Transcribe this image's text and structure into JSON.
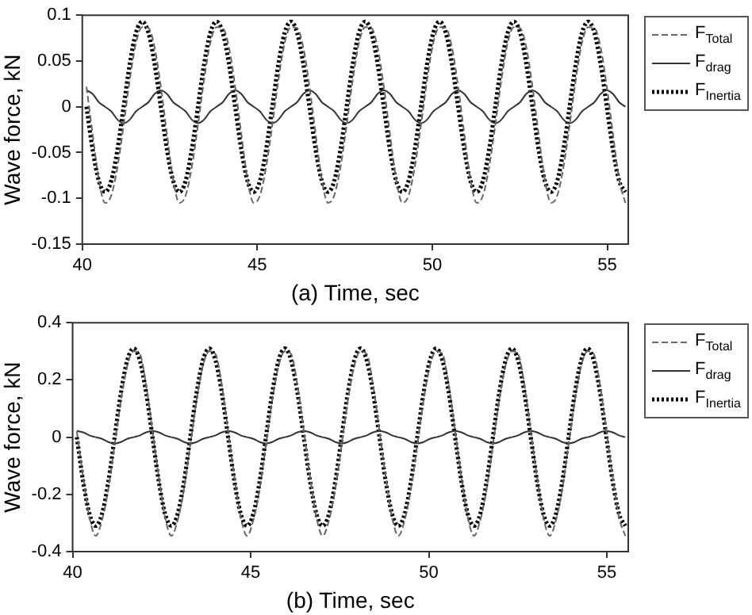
{
  "chart_data": [
    {
      "type": "line",
      "xlabel": "(a) Time, sec",
      "ylabel": "Wave force, kN",
      "xlim": [
        40,
        55.6
      ],
      "ylim": [
        -0.15,
        0.1
      ],
      "xticks": [
        40,
        45,
        50,
        55
      ],
      "yticks": [
        -0.15,
        -0.1,
        -0.05,
        0,
        0.05,
        0.1
      ],
      "grid": false,
      "legend": "top right",
      "x": [
        40.119,
        40.296,
        40.473,
        40.65,
        40.827,
        41.004,
        41.181,
        41.358,
        41.535,
        41.712,
        41.889,
        42.066,
        42.243,
        42.42,
        42.597,
        42.774,
        42.951,
        43.128,
        43.305,
        43.482,
        43.659,
        43.836,
        44.013,
        44.19,
        44.367,
        44.544,
        44.721,
        44.898,
        45.075,
        45.252,
        45.429,
        45.606,
        45.783,
        45.96,
        46.137,
        46.314,
        46.491,
        46.668,
        46.845,
        47.022,
        47.199,
        47.376,
        47.553,
        47.73,
        47.907,
        48.084,
        48.261,
        48.438,
        48.615,
        48.792,
        48.969,
        49.146,
        49.323,
        49.5,
        49.677,
        49.854,
        50.031,
        50.208,
        50.385,
        50.562,
        50.739,
        50.916,
        51.093,
        51.27,
        51.447,
        51.624,
        51.801,
        51.978,
        52.155,
        52.332,
        52.509,
        52.686,
        52.863,
        53.04,
        53.217,
        53.394,
        53.571,
        53.748,
        53.925,
        54.102,
        54.279,
        54.456,
        54.633,
        54.81,
        54.987,
        55.164,
        55.341,
        55.518
      ],
      "series": [
        {
          "name": "F$_{Total}$",
          "color": "#666666",
          "line_style": "dashed",
          "values": [
            0.022,
            -0.03,
            -0.08,
            -0.105,
            -0.097,
            -0.066,
            -0.02,
            0.03,
            0.07,
            0.087,
            0.086,
            0.065,
            0.022,
            -0.03,
            -0.08,
            -0.105,
            -0.097,
            -0.066,
            -0.02,
            0.03,
            0.07,
            0.087,
            0.086,
            0.065,
            0.022,
            -0.03,
            -0.08,
            -0.105,
            -0.097,
            -0.066,
            -0.02,
            0.03,
            0.07,
            0.087,
            0.086,
            0.065,
            0.022,
            -0.03,
            -0.08,
            -0.105,
            -0.097,
            -0.066,
            -0.02,
            0.03,
            0.07,
            0.087,
            0.086,
            0.065,
            0.022,
            -0.03,
            -0.08,
            -0.105,
            -0.097,
            -0.066,
            -0.02,
            0.03,
            0.07,
            0.087,
            0.086,
            0.065,
            0.022,
            -0.03,
            -0.08,
            -0.105,
            -0.097,
            -0.066,
            -0.02,
            0.03,
            0.07,
            0.087,
            0.086,
            0.065,
            0.022,
            -0.03,
            -0.08,
            -0.105,
            -0.097,
            -0.066,
            -0.02,
            0.03,
            0.07,
            0.087,
            0.086,
            0.065,
            0.022,
            -0.03,
            -0.08,
            -0.105
          ]
        },
        {
          "name": "F$_{drag}$",
          "color": "#333333",
          "line_style": "solid",
          "values": [
            0.018,
            0.014,
            0.005,
            0,
            -0.005,
            -0.014,
            -0.018,
            -0.014,
            -0.005,
            0,
            0.005,
            0.014,
            0.018,
            0.014,
            0.005,
            0,
            -0.005,
            -0.014,
            -0.018,
            -0.014,
            -0.005,
            0,
            0.005,
            0.014,
            0.018,
            0.014,
            0.005,
            0,
            -0.005,
            -0.014,
            -0.018,
            -0.014,
            -0.005,
            0,
            0.005,
            0.014,
            0.018,
            0.014,
            0.005,
            0,
            -0.005,
            -0.014,
            -0.018,
            -0.014,
            -0.005,
            0,
            0.005,
            0.014,
            0.018,
            0.014,
            0.005,
            0,
            -0.005,
            -0.014,
            -0.018,
            -0.014,
            -0.005,
            0,
            0.005,
            0.014,
            0.018,
            0.014,
            0.005,
            0,
            -0.005,
            -0.014,
            -0.018,
            -0.014,
            -0.005,
            0,
            0.005,
            0.014,
            0.018,
            0.014,
            0.005,
            0,
            -0.005,
            -0.014,
            -0.018,
            -0.014,
            -0.005,
            0,
            0.005,
            0.014,
            0.018,
            0.014,
            0.005,
            0
          ]
        },
        {
          "name": "F$_{Inertia}$",
          "color": "#000000",
          "line_style": "dotted",
          "values": [
            0,
            -0.047,
            -0.081,
            -0.093,
            -0.081,
            -0.047,
            0,
            0.047,
            0.081,
            0.093,
            0.081,
            0.047,
            0,
            -0.047,
            -0.081,
            -0.093,
            -0.081,
            -0.047,
            0,
            0.047,
            0.081,
            0.093,
            0.081,
            0.047,
            0,
            -0.047,
            -0.081,
            -0.093,
            -0.081,
            -0.047,
            0,
            0.047,
            0.081,
            0.093,
            0.081,
            0.047,
            0,
            -0.047,
            -0.081,
            -0.093,
            -0.081,
            -0.047,
            0,
            0.047,
            0.081,
            0.093,
            0.081,
            0.047,
            0,
            -0.047,
            -0.081,
            -0.093,
            -0.081,
            -0.047,
            0,
            0.047,
            0.081,
            0.093,
            0.081,
            0.047,
            0,
            -0.047,
            -0.081,
            -0.093,
            -0.081,
            -0.047,
            0,
            0.047,
            0.081,
            0.093,
            0.081,
            0.047,
            0,
            -0.047,
            -0.081,
            -0.093,
            -0.081,
            -0.047,
            0,
            0.047,
            0.081,
            0.093,
            0.081,
            0.047,
            0,
            -0.047,
            -0.081,
            -0.093
          ]
        }
      ]
    },
    {
      "type": "line",
      "xlabel": "(b) Time, sec",
      "ylabel": "Wave force, kN",
      "xlim": [
        40,
        55.6
      ],
      "ylim": [
        -0.4,
        0.4
      ],
      "xticks": [
        40,
        45,
        50,
        55
      ],
      "yticks": [
        -0.4,
        -0.2,
        0,
        0.2,
        0.4
      ],
      "grid": false,
      "legend": "top right",
      "x": [
        40.119,
        40.296,
        40.473,
        40.65,
        40.827,
        41.004,
        41.181,
        41.358,
        41.535,
        41.712,
        41.889,
        42.066,
        42.243,
        42.42,
        42.597,
        42.774,
        42.951,
        43.128,
        43.305,
        43.482,
        43.659,
        43.836,
        44.013,
        44.19,
        44.367,
        44.544,
        44.721,
        44.898,
        45.075,
        45.252,
        45.429,
        45.606,
        45.783,
        45.96,
        46.137,
        46.314,
        46.491,
        46.668,
        46.845,
        47.022,
        47.199,
        47.376,
        47.553,
        47.73,
        47.907,
        48.084,
        48.261,
        48.438,
        48.615,
        48.792,
        48.969,
        49.146,
        49.323,
        49.5,
        49.677,
        49.854,
        50.031,
        50.208,
        50.385,
        50.562,
        50.739,
        50.916,
        51.093,
        51.27,
        51.447,
        51.624,
        51.801,
        51.978,
        52.155,
        52.332,
        52.509,
        52.686,
        52.863,
        53.04,
        53.217,
        53.394,
        53.571,
        53.748,
        53.925,
        54.102,
        54.279,
        54.456,
        54.633,
        54.81,
        54.987,
        55.164,
        55.341,
        55.518
      ],
      "series": [
        {
          "name": "F$_{Total}$",
          "color": "#666666",
          "line_style": "dashed",
          "values": [
            0.02,
            -0.14,
            -0.28,
            -0.345,
            -0.29,
            -0.18,
            -0.025,
            0.13,
            0.25,
            0.3,
            0.29,
            0.18,
            0.02,
            -0.14,
            -0.28,
            -0.345,
            -0.29,
            -0.18,
            -0.025,
            0.13,
            0.25,
            0.3,
            0.29,
            0.18,
            0.02,
            -0.14,
            -0.28,
            -0.345,
            -0.29,
            -0.18,
            -0.025,
            0.13,
            0.25,
            0.3,
            0.29,
            0.18,
            0.02,
            -0.14,
            -0.28,
            -0.345,
            -0.29,
            -0.18,
            -0.025,
            0.13,
            0.25,
            0.3,
            0.29,
            0.18,
            0.02,
            -0.14,
            -0.28,
            -0.345,
            -0.29,
            -0.18,
            -0.025,
            0.13,
            0.25,
            0.3,
            0.29,
            0.18,
            0.02,
            -0.14,
            -0.28,
            -0.345,
            -0.29,
            -0.18,
            -0.025,
            0.13,
            0.25,
            0.3,
            0.29,
            0.18,
            0.02,
            -0.14,
            -0.28,
            -0.345,
            -0.29,
            -0.18,
            -0.025,
            0.13,
            0.25,
            0.3,
            0.29,
            0.18,
            0.02,
            -0.14,
            -0.28,
            -0.345
          ]
        },
        {
          "name": "F$_{drag}$",
          "color": "#333333",
          "line_style": "solid",
          "values": [
            0.022,
            0.017,
            0.006,
            0,
            -0.006,
            -0.017,
            -0.022,
            -0.017,
            -0.006,
            0,
            0.006,
            0.017,
            0.022,
            0.017,
            0.006,
            0,
            -0.006,
            -0.017,
            -0.022,
            -0.017,
            -0.006,
            0,
            0.006,
            0.017,
            0.022,
            0.017,
            0.006,
            0,
            -0.006,
            -0.017,
            -0.022,
            -0.017,
            -0.006,
            0,
            0.006,
            0.017,
            0.022,
            0.017,
            0.006,
            0,
            -0.006,
            -0.017,
            -0.022,
            -0.017,
            -0.006,
            0,
            0.006,
            0.017,
            0.022,
            0.017,
            0.006,
            0,
            -0.006,
            -0.017,
            -0.022,
            -0.017,
            -0.006,
            0,
            0.006,
            0.017,
            0.022,
            0.017,
            0.006,
            0,
            -0.006,
            -0.017,
            -0.022,
            -0.017,
            -0.006,
            0,
            0.006,
            0.017,
            0.022,
            0.017,
            0.006,
            0,
            -0.006,
            -0.017,
            -0.022,
            -0.017,
            -0.006,
            0,
            0.006,
            0.017,
            0.022,
            0.017,
            0.006,
            0
          ]
        },
        {
          "name": "F$_{Inertia}$",
          "color": "#000000",
          "line_style": "dotted",
          "values": [
            0,
            -0.155,
            -0.268,
            -0.31,
            -0.268,
            -0.155,
            0,
            0.155,
            0.268,
            0.31,
            0.268,
            0.155,
            0,
            -0.155,
            -0.268,
            -0.31,
            -0.268,
            -0.155,
            0,
            0.155,
            0.268,
            0.31,
            0.268,
            0.155,
            0,
            -0.155,
            -0.268,
            -0.31,
            -0.268,
            -0.155,
            0,
            0.155,
            0.268,
            0.31,
            0.268,
            0.155,
            0,
            -0.155,
            -0.268,
            -0.31,
            -0.268,
            -0.155,
            0,
            0.155,
            0.268,
            0.31,
            0.268,
            0.155,
            0,
            -0.155,
            -0.268,
            -0.31,
            -0.268,
            -0.155,
            0,
            0.155,
            0.268,
            0.31,
            0.268,
            0.155,
            0,
            -0.155,
            -0.268,
            -0.31,
            -0.268,
            -0.155,
            0,
            0.155,
            0.268,
            0.31,
            0.268,
            0.155,
            0,
            -0.155,
            -0.268,
            -0.31,
            -0.268,
            -0.155,
            0,
            0.155,
            0.268,
            0.31,
            0.268,
            0.155,
            0,
            -0.155,
            -0.268,
            -0.31
          ]
        }
      ]
    }
  ]
}
